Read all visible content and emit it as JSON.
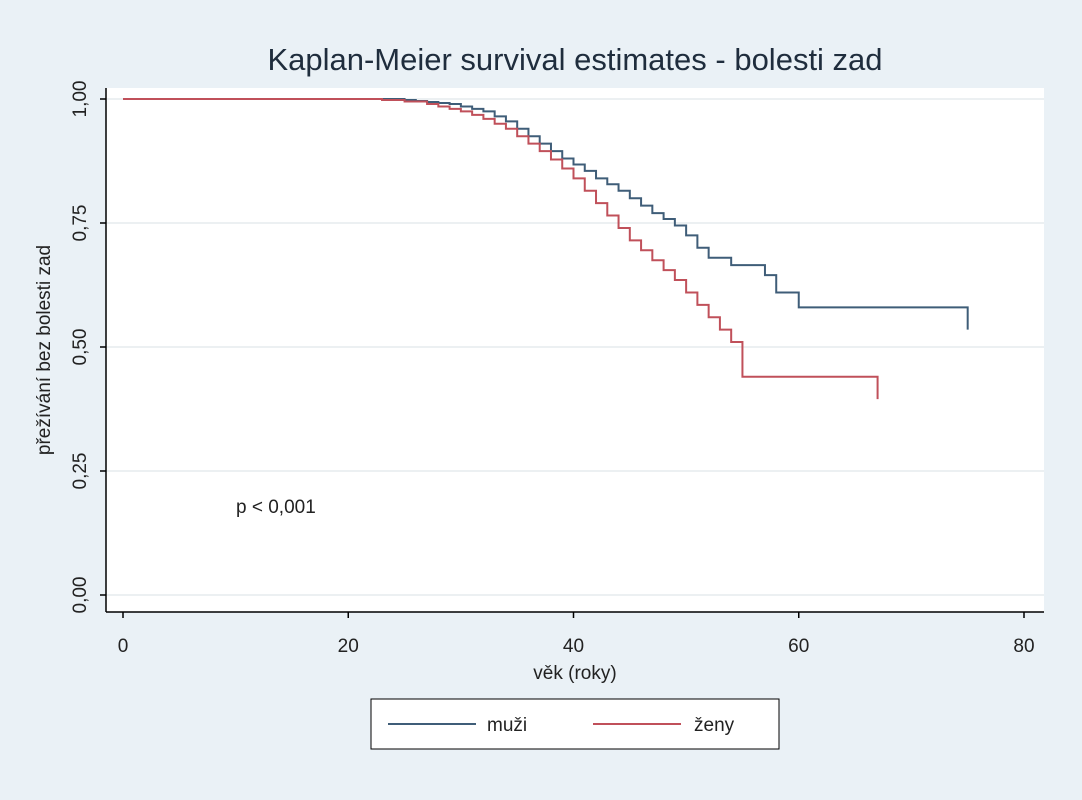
{
  "chart_data": {
    "type": "line",
    "step": true,
    "title": "Kaplan-Meier survival estimates - bolesti zad",
    "xlabel": "věk (roky)",
    "ylabel": "přežívání bez bolesti zad",
    "xlim": [
      0,
      80
    ],
    "ylim": [
      0,
      1
    ],
    "xticks": [
      0,
      20,
      40,
      60,
      80
    ],
    "xtick_labels": [
      "0",
      "20",
      "40",
      "60",
      "80"
    ],
    "yticks": [
      0,
      0.25,
      0.5,
      0.75,
      1.0
    ],
    "ytick_labels": [
      "0,00",
      "0,25",
      "0,50",
      "0,75",
      "1,00"
    ],
    "grid": true,
    "legend_position": "bottom",
    "annotation": "p < 0,001",
    "colors": {
      "background": "#eaf1f6",
      "plot_background": "#ffffff",
      "grid": "#e6ebee",
      "title": "#1f2d3d"
    },
    "series": [
      {
        "name": "muži",
        "color": "#3f5d78",
        "x": [
          0,
          25,
          26,
          27,
          28,
          29,
          30,
          31,
          32,
          33,
          34,
          35,
          36,
          37,
          38,
          39,
          40,
          41,
          42,
          43,
          44,
          45,
          46,
          47,
          48,
          49,
          50,
          51,
          52,
          54,
          57,
          58,
          60,
          75
        ],
        "y": [
          1.0,
          0.998,
          0.996,
          0.994,
          0.992,
          0.99,
          0.985,
          0.98,
          0.975,
          0.965,
          0.955,
          0.94,
          0.925,
          0.91,
          0.895,
          0.88,
          0.868,
          0.855,
          0.84,
          0.828,
          0.815,
          0.8,
          0.785,
          0.77,
          0.758,
          0.745,
          0.725,
          0.7,
          0.68,
          0.665,
          0.645,
          0.61,
          0.58,
          0.535
        ]
      },
      {
        "name": "ženy",
        "color": "#c0505a",
        "x": [
          0,
          23,
          25,
          27,
          28,
          29,
          30,
          31,
          32,
          33,
          34,
          35,
          36,
          37,
          38,
          39,
          40,
          41,
          42,
          43,
          44,
          45,
          46,
          47,
          48,
          49,
          50,
          51,
          52,
          53,
          54,
          55,
          67
        ],
        "y": [
          1.0,
          0.998,
          0.995,
          0.99,
          0.985,
          0.98,
          0.975,
          0.968,
          0.96,
          0.95,
          0.94,
          0.925,
          0.91,
          0.895,
          0.878,
          0.86,
          0.84,
          0.815,
          0.79,
          0.765,
          0.74,
          0.715,
          0.695,
          0.675,
          0.655,
          0.635,
          0.61,
          0.585,
          0.56,
          0.535,
          0.51,
          0.44,
          0.395
        ]
      }
    ]
  }
}
